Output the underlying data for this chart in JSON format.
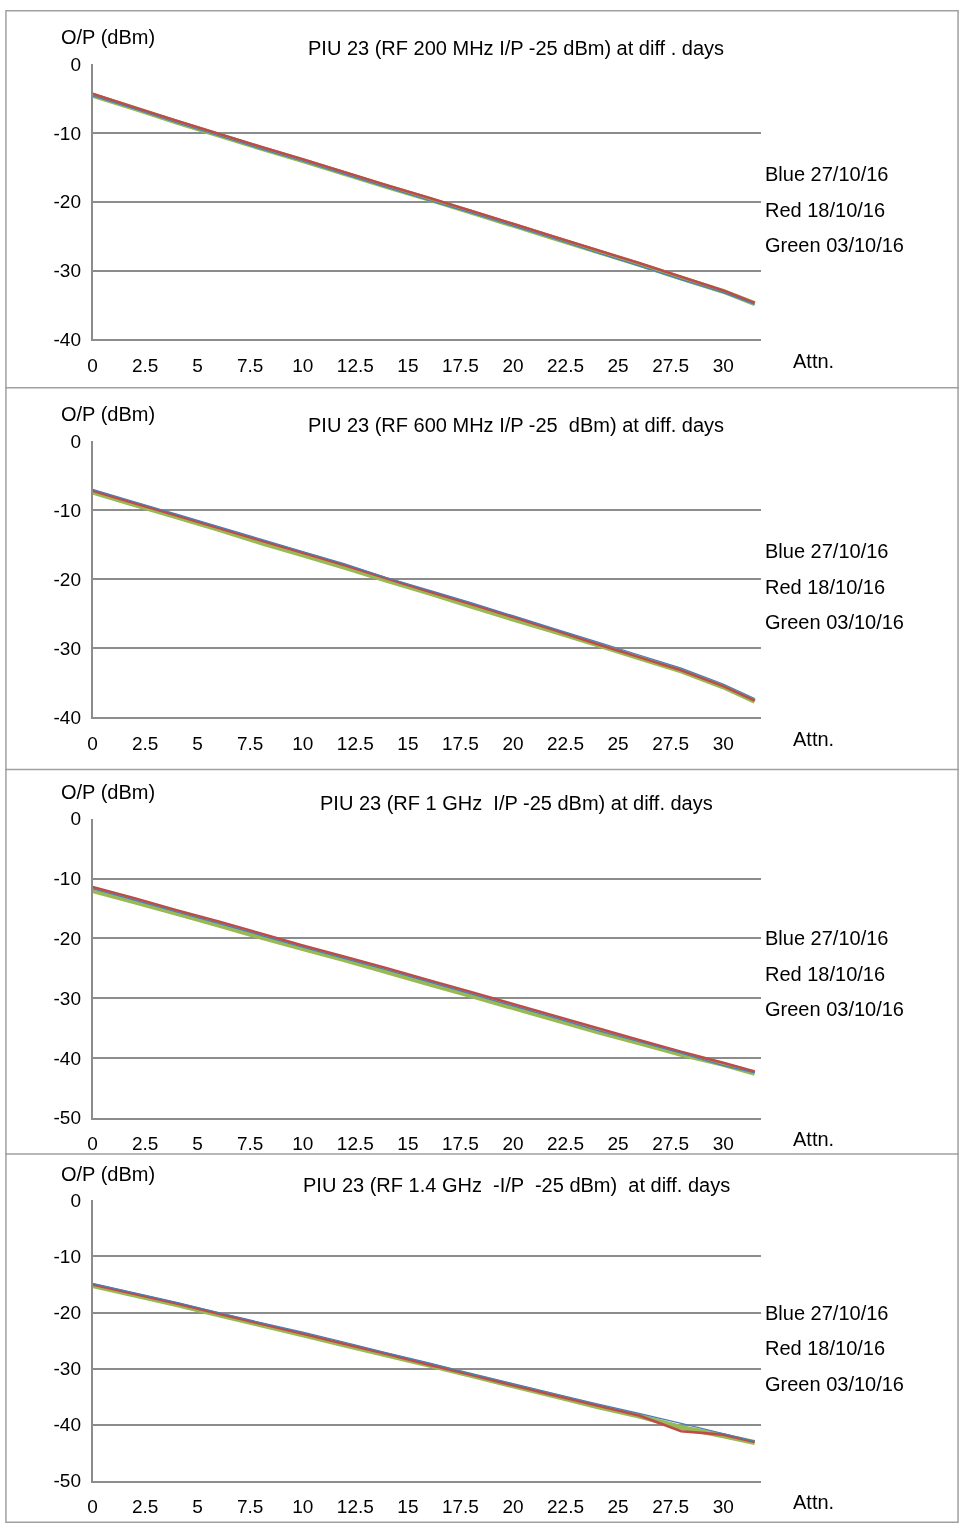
{
  "chart_data": [
    {
      "type": "line",
      "title": "PIU 23 (RF 200 MHz I/P -25 dBm) at diff . days",
      "xlabel": "Attn.",
      "ylabel": "O/P (dBm)",
      "x": [
        0,
        2,
        4,
        6,
        8,
        10,
        12,
        14,
        16,
        18,
        20,
        22,
        24,
        26,
        28,
        30,
        31.5
      ],
      "xlim": [
        0,
        31.8
      ],
      "xticks": [
        0,
        2.5,
        5,
        7.5,
        10,
        12.5,
        15,
        17.5,
        20,
        22.5,
        25,
        27.5,
        30
      ],
      "ylim": [
        -40,
        0
      ],
      "yticks": [
        -40,
        -30,
        -20,
        -10,
        0
      ],
      "grid": "y",
      "annotations": [
        "Blue 27/10/16",
        "Red 18/10/16",
        "Green 03/10/16"
      ],
      "series": [
        {
          "color": "#4a7ebb",
          "values": [
            -4.6,
            -6.5,
            -8.5,
            -10.4,
            -12.3,
            -14.1,
            -16.0,
            -17.9,
            -19.8,
            -21.6,
            -23.5,
            -25.4,
            -27.4,
            -29.3,
            -31.3,
            -33.2,
            -34.9
          ]
        },
        {
          "color": "#be4b48",
          "values": [
            -4.3,
            -6.3,
            -8.2,
            -10.1,
            -12.0,
            -13.8,
            -15.7,
            -17.6,
            -19.4,
            -21.3,
            -23.2,
            -25.1,
            -27.0,
            -28.9,
            -30.9,
            -32.9,
            -34.7
          ]
        },
        {
          "color": "#98b954",
          "values": [
            -4.5,
            -6.4,
            -8.4,
            -10.3,
            -12.2,
            -14.0,
            -15.9,
            -17.8,
            -19.6,
            -21.5,
            -23.4,
            -25.3,
            -27.2,
            -29.1,
            -31.1,
            -33.0,
            -34.8
          ]
        }
      ]
    },
    {
      "type": "line",
      "title": "PIU 23 (RF 600 MHz I/P -25  dBm) at diff. days",
      "xlabel": "Attn.",
      "ylabel": "O/P (dBm)",
      "x": [
        0,
        2,
        4,
        6,
        8,
        10,
        12,
        14,
        16,
        18,
        20,
        22,
        24,
        26,
        28,
        30,
        31.5
      ],
      "xlim": [
        0,
        31.8
      ],
      "xticks": [
        0,
        2.5,
        5,
        7.5,
        10,
        12.5,
        15,
        17.5,
        20,
        22.5,
        25,
        27.5,
        30
      ],
      "ylim": [
        -40,
        0
      ],
      "yticks": [
        -40,
        -30,
        -20,
        -10,
        0
      ],
      "grid": "y",
      "annotations": [
        "Blue 27/10/16",
        "Red 18/10/16",
        "Green 03/10/16"
      ],
      "series": [
        {
          "color": "#4a7ebb",
          "values": [
            -7.0,
            -8.8,
            -10.6,
            -12.4,
            -14.2,
            -16.0,
            -17.8,
            -19.8,
            -21.6,
            -23.4,
            -25.3,
            -27.2,
            -29.1,
            -31.0,
            -32.9,
            -35.2,
            -37.3
          ]
        },
        {
          "color": "#be4b48",
          "values": [
            -7.2,
            -9.0,
            -10.8,
            -12.6,
            -14.4,
            -16.2,
            -18.0,
            -19.9,
            -21.8,
            -23.6,
            -25.5,
            -27.4,
            -29.4,
            -31.3,
            -33.2,
            -35.5,
            -37.6
          ]
        },
        {
          "color": "#98b954",
          "values": [
            -7.4,
            -9.2,
            -11.0,
            -12.8,
            -14.7,
            -16.5,
            -18.3,
            -20.2,
            -22.0,
            -23.9,
            -25.8,
            -27.6,
            -29.5,
            -31.4,
            -33.3,
            -35.6,
            -37.7
          ]
        }
      ]
    },
    {
      "type": "line",
      "title": "PIU 23 (RF 1 GHz  I/P -25 dBm) at diff. days",
      "xlabel": "Attn.",
      "ylabel": "O/P (dBm)",
      "x": [
        0,
        2,
        4,
        6,
        8,
        10,
        12,
        14,
        16,
        18,
        20,
        22,
        24,
        26,
        28,
        30,
        31.5
      ],
      "xlim": [
        0,
        31.8
      ],
      "xticks": [
        0,
        2.5,
        5,
        7.5,
        10,
        12.5,
        15,
        17.5,
        20,
        22.5,
        25,
        27.5,
        30
      ],
      "ylim": [
        -50,
        0
      ],
      "yticks": [
        -50,
        -40,
        -30,
        -20,
        -10,
        0
      ],
      "grid": "y",
      "annotations": [
        "Blue 27/10/16",
        "Red 18/10/16",
        "Green 03/10/16"
      ],
      "series": [
        {
          "color": "#4a7ebb",
          "values": [
            -11.7,
            -13.6,
            -15.6,
            -17.5,
            -19.5,
            -21.5,
            -23.4,
            -25.3,
            -27.3,
            -29.3,
            -31.3,
            -33.3,
            -35.4,
            -37.3,
            -39.2,
            -41.3,
            -42.5
          ]
        },
        {
          "color": "#be4b48",
          "values": [
            -11.4,
            -13.3,
            -15.3,
            -17.2,
            -19.2,
            -21.2,
            -23.1,
            -25.0,
            -27.0,
            -29.0,
            -31.0,
            -33.0,
            -35.0,
            -37.0,
            -39.0,
            -40.8,
            -42.3
          ]
        },
        {
          "color": "#98b954",
          "values": [
            -12.0,
            -13.9,
            -15.8,
            -17.8,
            -19.8,
            -21.7,
            -23.6,
            -25.6,
            -27.6,
            -29.6,
            -31.6,
            -33.6,
            -35.6,
            -37.5,
            -39.4,
            -41.1,
            -42.6
          ]
        }
      ]
    },
    {
      "type": "line",
      "title": "PIU 23 (RF 1.4 GHz  -I/P  -25 dBm)  at diff. days",
      "xlabel": "Attn.",
      "ylabel": "O/P (dBm)",
      "x": [
        0,
        2,
        4,
        6,
        8,
        10,
        12,
        14,
        16,
        18,
        20,
        22,
        24,
        26,
        28,
        30,
        31.5
      ],
      "xlim": [
        0,
        31.8
      ],
      "xticks": [
        0,
        2.5,
        5,
        7.5,
        10,
        12.5,
        15,
        17.5,
        20,
        22.5,
        25,
        27.5,
        30
      ],
      "ylim": [
        -50,
        0
      ],
      "yticks": [
        -50,
        -40,
        -30,
        -20,
        -10,
        0
      ],
      "grid": "y",
      "annotations": [
        "Blue 27/10/16",
        "Red 18/10/16",
        "Green 03/10/16"
      ],
      "series": [
        {
          "color": "#4a7ebb",
          "values": [
            -14.8,
            -16.5,
            -18.2,
            -20.0,
            -21.8,
            -23.5,
            -25.3,
            -27.2,
            -29.0,
            -30.9,
            -32.7,
            -34.5,
            -36.3,
            -38.0,
            -39.8,
            -41.6,
            -43.0
          ]
        },
        {
          "color": "#be4b48",
          "values": [
            -15.0,
            -16.7,
            -18.4,
            -20.2,
            -22.0,
            -23.8,
            -25.6,
            -27.4,
            -29.3,
            -31.1,
            -33.0,
            -34.8,
            -36.6,
            -38.4,
            -41.2,
            -41.8,
            -43.1
          ]
        },
        {
          "color": "#98b954",
          "values": [
            -15.2,
            -16.9,
            -18.6,
            -20.4,
            -22.2,
            -24.0,
            -25.8,
            -27.6,
            -29.4,
            -31.2,
            -33.1,
            -34.9,
            -36.8,
            -38.5,
            -40.5,
            -42.0,
            -43.2
          ]
        }
      ]
    }
  ]
}
